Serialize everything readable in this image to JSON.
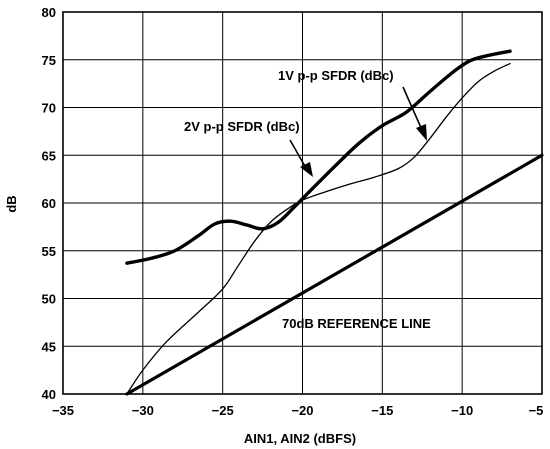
{
  "chart_data": {
    "type": "line",
    "title": "",
    "xlabel": "AIN1, AIN2 (dBFS)",
    "ylabel": "dB",
    "xlim": [
      -35,
      -5
    ],
    "ylim": [
      40,
      80
    ],
    "x_ticks": [
      -35,
      -30,
      -25,
      -20,
      -15,
      -10,
      -5
    ],
    "y_ticks": [
      40,
      45,
      50,
      55,
      60,
      65,
      70,
      75,
      80
    ],
    "x_tick_labels": [
      "−35",
      "−30",
      "−25",
      "−20",
      "−15",
      "−10",
      "−5"
    ],
    "y_tick_labels": [
      "40",
      "45",
      "50",
      "55",
      "60",
      "65",
      "70",
      "75",
      "80"
    ],
    "grid": true,
    "series": [
      {
        "name": "1V p-p SFDR (dBc)",
        "color": "#000000",
        "points": [
          [
            -31,
            53.7
          ],
          [
            -29.5,
            54.2
          ],
          [
            -28,
            55.0
          ],
          [
            -26.5,
            56.6
          ],
          [
            -25.5,
            57.8
          ],
          [
            -24.5,
            58.1
          ],
          [
            -23.5,
            57.7
          ],
          [
            -22.5,
            57.3
          ],
          [
            -21.5,
            58.0
          ],
          [
            -20.5,
            59.6
          ],
          [
            -19.5,
            61.3
          ],
          [
            -18,
            63.8
          ],
          [
            -16.5,
            66.2
          ],
          [
            -15,
            68.1
          ],
          [
            -13.5,
            69.5
          ],
          [
            -12,
            71.7
          ],
          [
            -10.5,
            73.8
          ],
          [
            -9.5,
            74.9
          ],
          [
            -8.5,
            75.4
          ],
          [
            -7,
            75.9
          ]
        ]
      },
      {
        "name": "2V p-p SFDR (dBc)",
        "color": "#000000",
        "points": [
          [
            -31,
            40.0
          ],
          [
            -30,
            42.5
          ],
          [
            -28.5,
            45.5
          ],
          [
            -26.5,
            48.6
          ],
          [
            -25,
            51.0
          ],
          [
            -24,
            53.5
          ],
          [
            -23,
            56.0
          ],
          [
            -22,
            58.0
          ],
          [
            -21,
            59.3
          ],
          [
            -20,
            60.3
          ],
          [
            -18.5,
            61.2
          ],
          [
            -17,
            62.0
          ],
          [
            -15.5,
            62.7
          ],
          [
            -14,
            63.6
          ],
          [
            -13,
            64.8
          ],
          [
            -12,
            66.8
          ],
          [
            -11,
            69.0
          ],
          [
            -10,
            71.0
          ],
          [
            -9,
            72.7
          ],
          [
            -8,
            73.8
          ],
          [
            -7,
            74.6
          ]
        ]
      },
      {
        "name": "70dB REFERENCE LINE",
        "color": "#000000",
        "points": [
          [
            -31,
            40.0
          ],
          [
            -5,
            65.0
          ]
        ]
      }
    ],
    "annotations": {
      "label_1v": "1V p-p SFDR (dBc)",
      "label_2v": "2V p-p SFDR (dBc)",
      "label_ref": "70dB REFERENCE LINE"
    }
  }
}
